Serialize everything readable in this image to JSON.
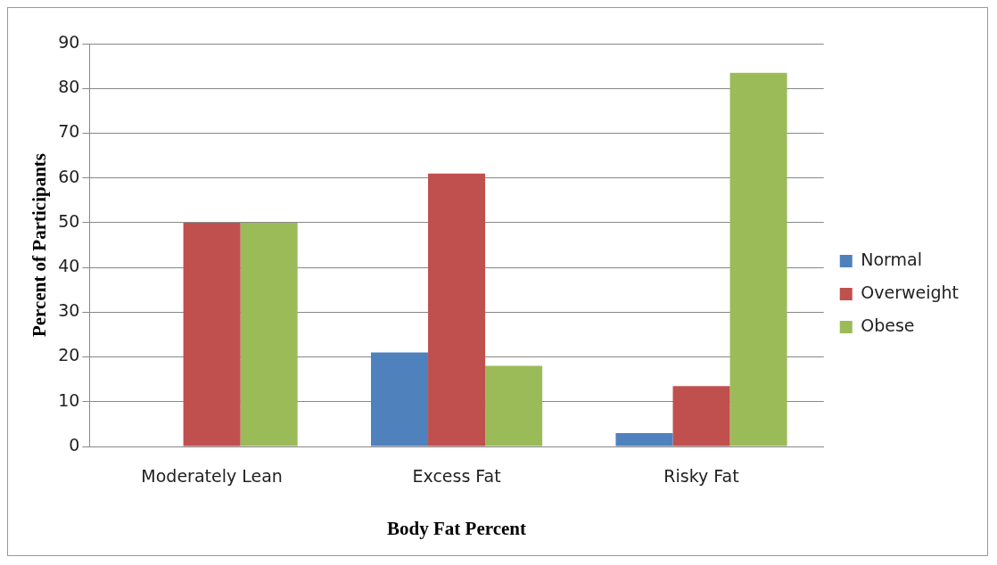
{
  "chart_data": {
    "type": "bar",
    "xlabel": "Body Fat Percent",
    "ylabel": "Percent of Participants",
    "categories": [
      "Moderately Lean",
      "Excess Fat",
      "Risky Fat"
    ],
    "series": [
      {
        "name": "Normal",
        "color": "#4f81bd",
        "values": [
          0,
          21,
          3
        ]
      },
      {
        "name": "Overweight",
        "color": "#c0504d",
        "values": [
          50,
          61,
          13.5
        ]
      },
      {
        "name": "Obese",
        "color": "#9bbb59",
        "values": [
          50,
          18,
          83.5
        ]
      }
    ],
    "ylim": [
      0,
      90
    ],
    "yticks": [
      0,
      10,
      20,
      30,
      40,
      50,
      60,
      70,
      80,
      90
    ],
    "grid": "y",
    "legend": "right"
  }
}
